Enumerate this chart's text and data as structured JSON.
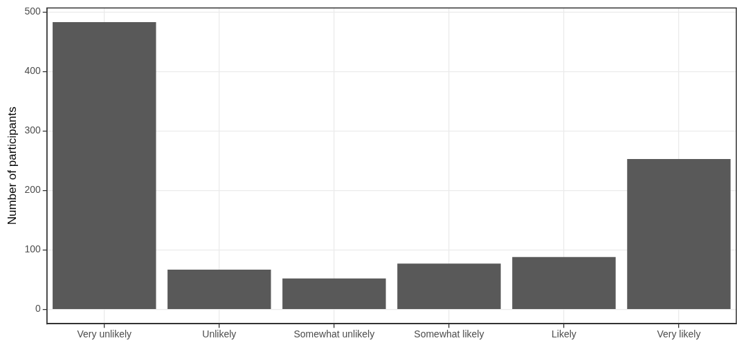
{
  "chart_data": {
    "type": "bar",
    "ylabel": "Number of participants",
    "categories": [
      "Very unlikely",
      "Unlikely",
      "Somewhat unlikely",
      "Somewhat likely",
      "Likely",
      "Very likely"
    ],
    "values": [
      483,
      67,
      52,
      77,
      88,
      253
    ],
    "color": "#595959",
    "ylim": [
      -24,
      507
    ],
    "yticks": [
      0,
      100,
      200,
      300,
      400,
      500
    ],
    "grid": true,
    "legend": false
  }
}
